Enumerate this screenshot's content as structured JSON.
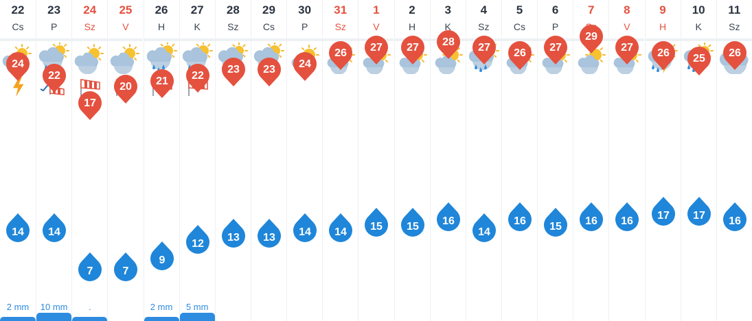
{
  "colors": {
    "max": "#e4513f",
    "min": "#1f86d9",
    "weekend": "#e4513f",
    "precip": "#2d8be0"
  },
  "days": [
    {
      "date": "22",
      "name": "Cs",
      "weekend": false,
      "icon": "partly-cloudy-icon",
      "extra": "lightning-icon",
      "max": 24,
      "min": 14,
      "precip": "2 mm"
    },
    {
      "date": "23",
      "name": "P",
      "weekend": false,
      "icon": "rain-cloud-sun-icon",
      "extra": "wind-sock-low-icon",
      "max": 22,
      "min": 14,
      "precip": "10 mm"
    },
    {
      "date": "24",
      "name": "Sz",
      "weekend": true,
      "icon": "partly-cloudy-icon",
      "extra": "wind-sock-icon",
      "max": 17,
      "min": 7,
      "precip": "."
    },
    {
      "date": "25",
      "name": "V",
      "weekend": true,
      "icon": "partly-cloudy-icon",
      "extra": "wind-sock-icon",
      "max": 20,
      "min": 7,
      "precip": ""
    },
    {
      "date": "26",
      "name": "H",
      "weekend": false,
      "icon": "rain-cloud-sun-icon",
      "extra": "wind-sock-icon",
      "max": 21,
      "min": 9,
      "precip": "2 mm"
    },
    {
      "date": "27",
      "name": "K",
      "weekend": false,
      "icon": "rain-cloud-sun-icon",
      "extra": "wind-sock-icon",
      "max": 22,
      "min": 12,
      "precip": "5 mm"
    },
    {
      "date": "28",
      "name": "Sz",
      "weekend": false,
      "icon": "thunderstorm-icon",
      "extra": "",
      "max": 23,
      "min": 13,
      "precip": ""
    },
    {
      "date": "29",
      "name": "Cs",
      "weekend": false,
      "icon": "rain-cloud-sun-icon",
      "extra": "",
      "max": 23,
      "min": 13,
      "precip": ""
    },
    {
      "date": "30",
      "name": "P",
      "weekend": false,
      "icon": "sun-behind-cloud-icon",
      "extra": "",
      "max": 24,
      "min": 14,
      "precip": ""
    },
    {
      "date": "31",
      "name": "Sz",
      "weekend": true,
      "icon": "sun-behind-cloud-icon",
      "extra": "",
      "max": 26,
      "min": 14,
      "precip": ""
    },
    {
      "date": "1",
      "name": "V",
      "weekend": true,
      "icon": "sun-behind-cloud-icon",
      "extra": "",
      "max": 27,
      "min": 15,
      "precip": ""
    },
    {
      "date": "2",
      "name": "H",
      "weekend": false,
      "icon": "sun-behind-cloud-icon",
      "extra": "",
      "max": 27,
      "min": 15,
      "precip": ""
    },
    {
      "date": "3",
      "name": "K",
      "weekend": false,
      "icon": "sun-behind-cloud-icon",
      "extra": "",
      "max": 28,
      "min": 16,
      "precip": ""
    },
    {
      "date": "4",
      "name": "Sz",
      "weekend": false,
      "icon": "rain-cloud-sun-icon",
      "extra": "",
      "max": 27,
      "min": 14,
      "precip": ""
    },
    {
      "date": "5",
      "name": "Cs",
      "weekend": false,
      "icon": "sun-behind-cloud-icon",
      "extra": "",
      "max": 26,
      "min": 16,
      "precip": ""
    },
    {
      "date": "6",
      "name": "P",
      "weekend": false,
      "icon": "sun-behind-cloud-icon",
      "extra": "",
      "max": 27,
      "min": 15,
      "precip": ""
    },
    {
      "date": "7",
      "name": "Sz",
      "weekend": true,
      "icon": "sun-behind-cloud-icon",
      "extra": "",
      "max": 29,
      "min": 16,
      "precip": ""
    },
    {
      "date": "8",
      "name": "V",
      "weekend": true,
      "icon": "sun-behind-cloud-icon",
      "extra": "",
      "max": 27,
      "min": 16,
      "precip": ""
    },
    {
      "date": "9",
      "name": "H",
      "weekend": true,
      "icon": "thunderstorm-icon",
      "extra": "",
      "max": 26,
      "min": 17,
      "precip": ""
    },
    {
      "date": "10",
      "name": "K",
      "weekend": false,
      "icon": "thunderstorm-icon",
      "extra": "",
      "max": 25,
      "min": 17,
      "precip": ""
    },
    {
      "date": "11",
      "name": "Sz",
      "weekend": false,
      "icon": "cloud-icon",
      "extra": "",
      "max": 26,
      "min": 16,
      "precip": ""
    }
  ]
}
